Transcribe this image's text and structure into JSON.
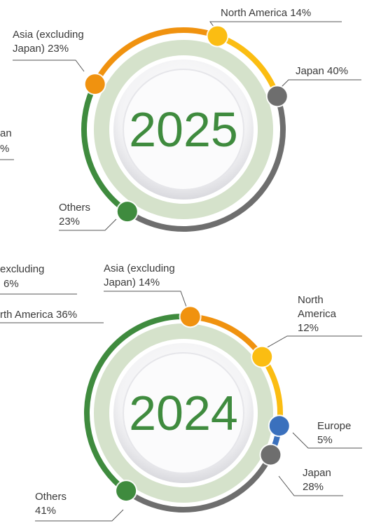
{
  "chart_data": [
    {
      "type": "donut",
      "title": "2025",
      "categories": [
        "North America",
        "Japan",
        "Others",
        "Asia (excluding Japan)"
      ],
      "values": [
        14,
        40,
        23,
        23
      ],
      "value_labels": [
        "14%",
        "40%",
        "23%",
        "23%"
      ],
      "colors": [
        "#fbbd12",
        "#6e6e6e",
        "#3f8b3e",
        "#f0920f"
      ]
    },
    {
      "type": "donut",
      "title": "2024",
      "categories": [
        "Asia (excluding Japan)",
        "North America",
        "Europe",
        "Japan",
        "Others"
      ],
      "values": [
        14,
        12,
        5,
        28,
        41
      ],
      "value_labels": [
        "14%",
        "12%",
        "5%",
        "28%",
        "41%"
      ],
      "colors": [
        "#f0920f",
        "#fbbd12",
        "#3a70bd",
        "#6e6e6e",
        "#3f8b3e"
      ]
    }
  ],
  "annotations": [
    "an",
    "%",
    "excluding",
    "6%",
    "rth America 36%"
  ]
}
